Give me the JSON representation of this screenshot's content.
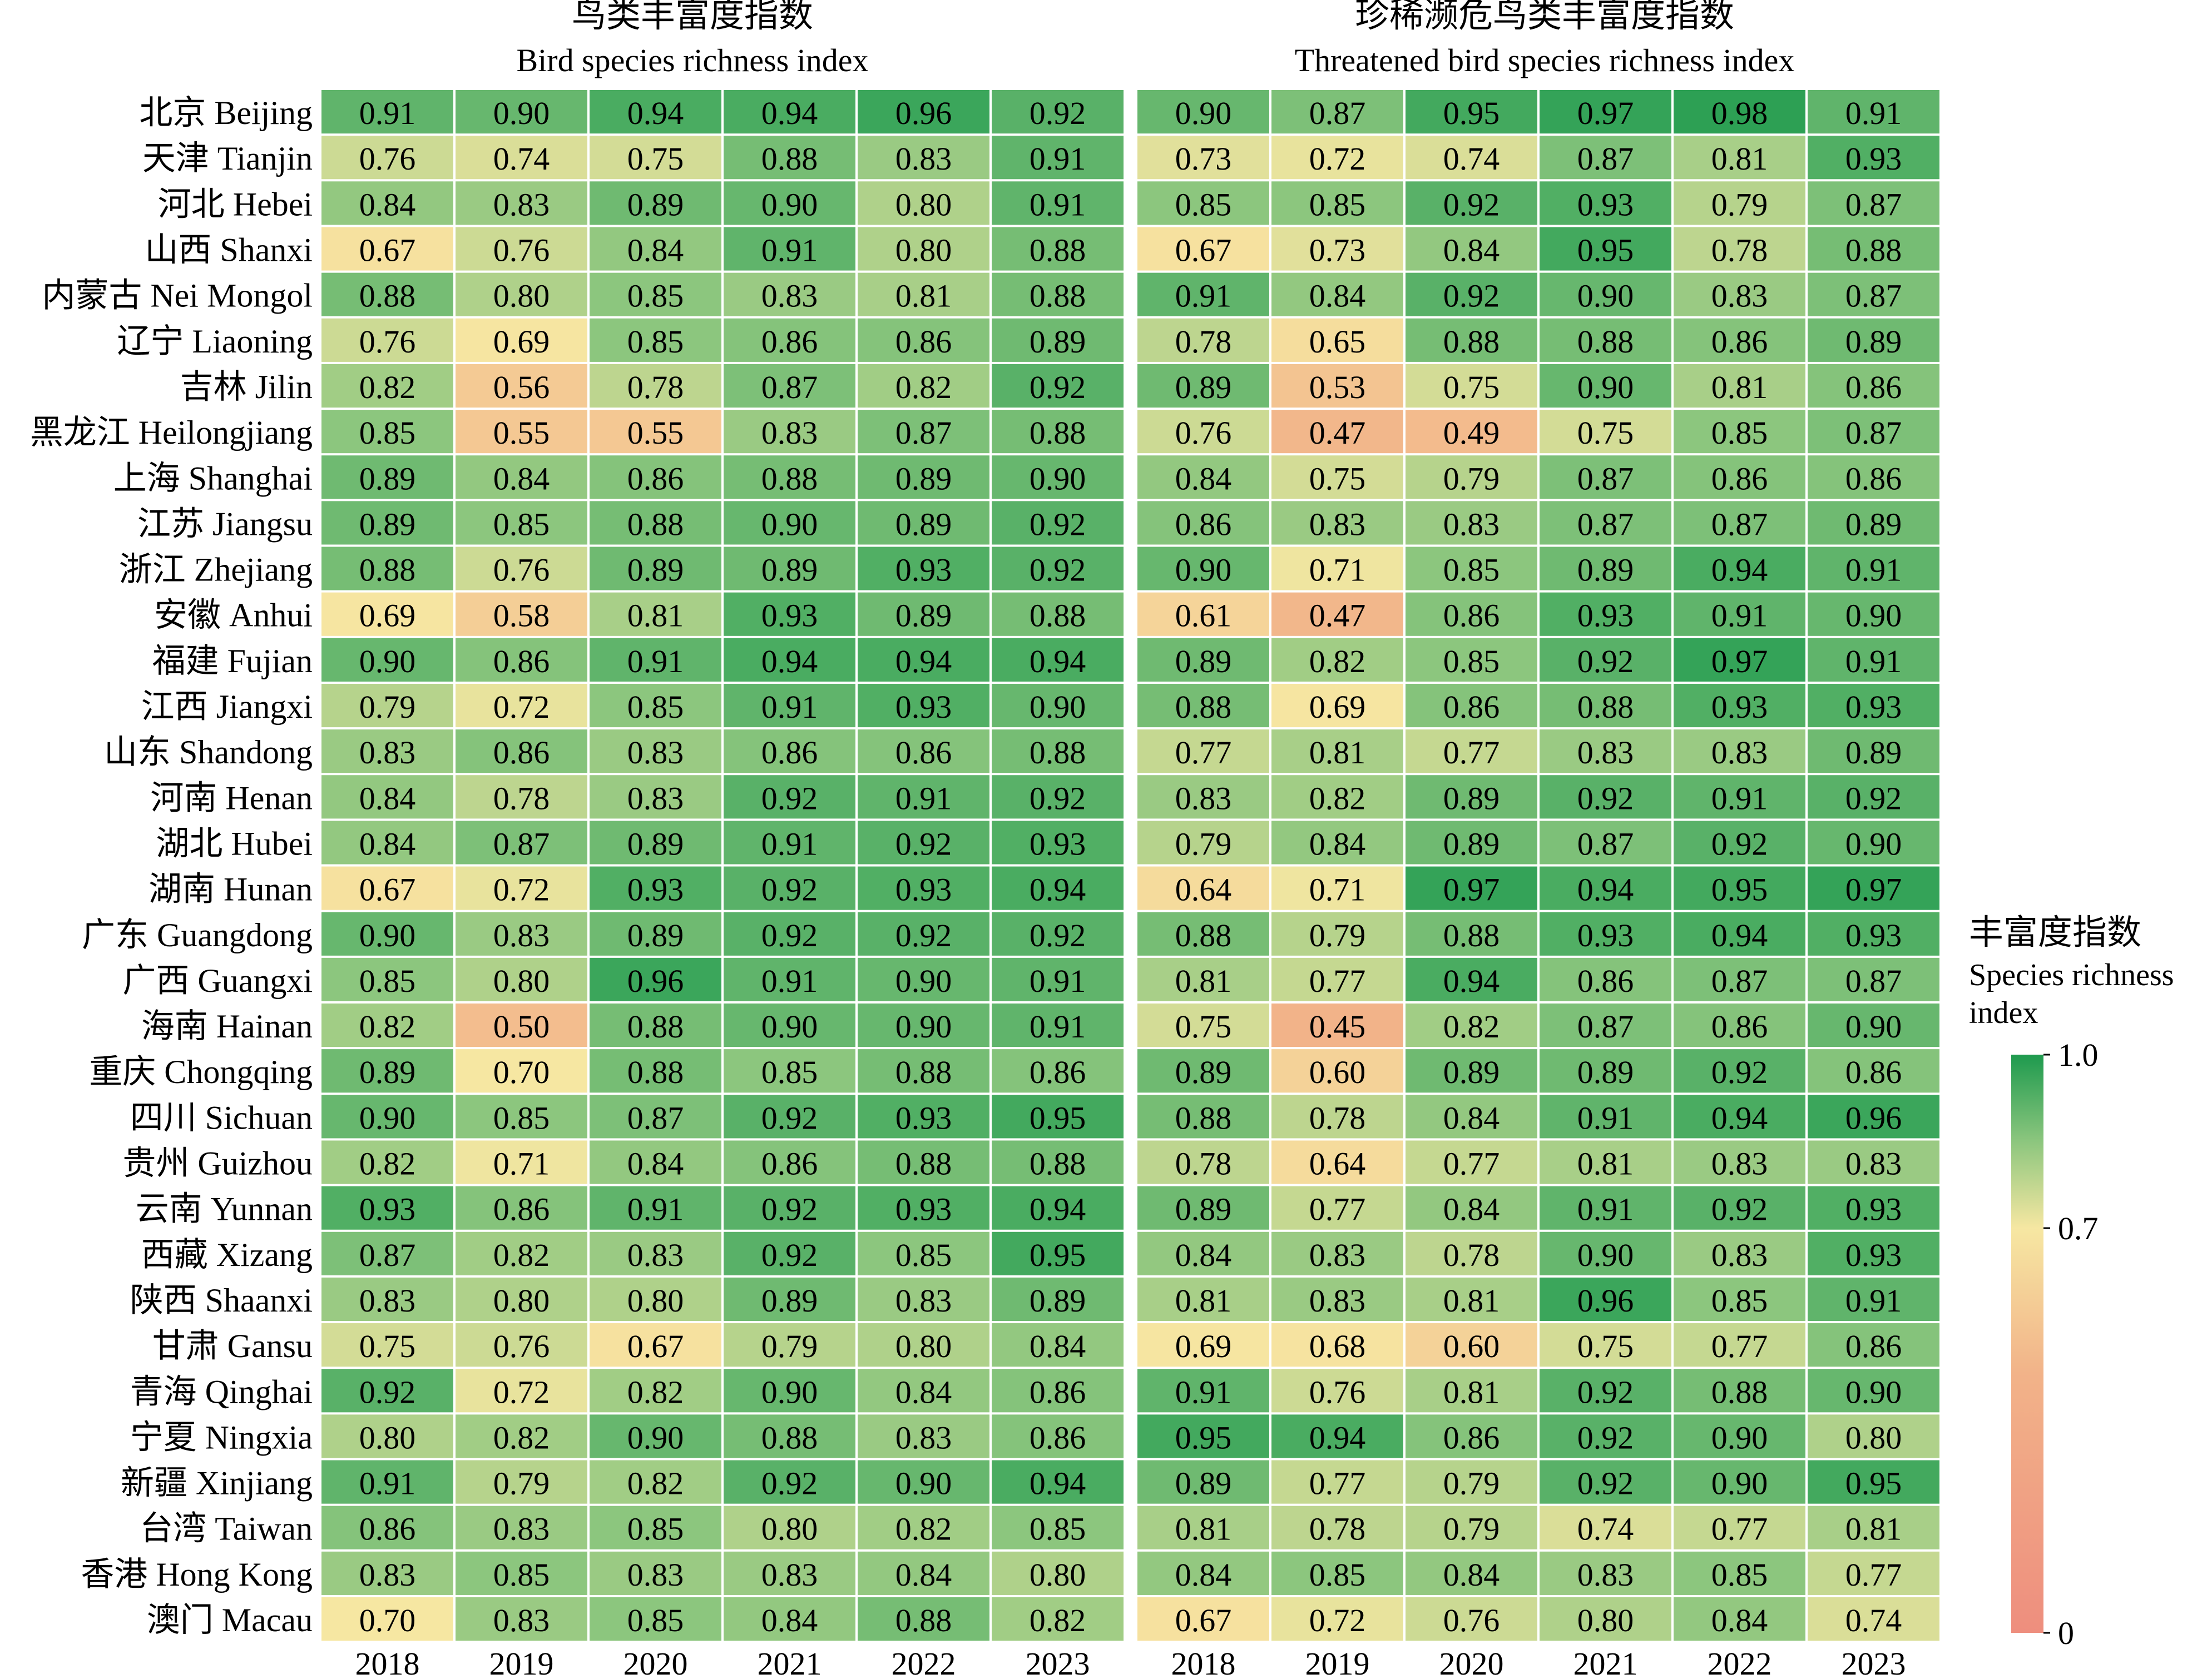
{
  "chart_data": {
    "type": "heatmap",
    "panels": [
      {
        "title_cn": "鸟类丰富度指数",
        "title_en": "Bird species richness index",
        "years": [
          "2018",
          "2019",
          "2020",
          "2021",
          "2022",
          "2023"
        ],
        "values": [
          [
            0.91,
            0.9,
            0.94,
            0.94,
            0.96,
            0.92
          ],
          [
            0.76,
            0.74,
            0.75,
            0.88,
            0.83,
            0.91
          ],
          [
            0.84,
            0.83,
            0.89,
            0.9,
            0.8,
            0.91
          ],
          [
            0.67,
            0.76,
            0.84,
            0.91,
            0.8,
            0.88
          ],
          [
            0.88,
            0.8,
            0.85,
            0.83,
            0.81,
            0.88
          ],
          [
            0.76,
            0.69,
            0.85,
            0.86,
            0.86,
            0.89
          ],
          [
            0.82,
            0.56,
            0.78,
            0.87,
            0.82,
            0.92
          ],
          [
            0.85,
            0.55,
            0.55,
            0.83,
            0.87,
            0.88
          ],
          [
            0.89,
            0.84,
            0.86,
            0.88,
            0.89,
            0.9
          ],
          [
            0.89,
            0.85,
            0.88,
            0.9,
            0.89,
            0.92
          ],
          [
            0.88,
            0.76,
            0.89,
            0.89,
            0.93,
            0.92
          ],
          [
            0.69,
            0.58,
            0.81,
            0.93,
            0.89,
            0.88
          ],
          [
            0.9,
            0.86,
            0.91,
            0.94,
            0.94,
            0.94
          ],
          [
            0.79,
            0.72,
            0.85,
            0.91,
            0.93,
            0.9
          ],
          [
            0.83,
            0.86,
            0.83,
            0.86,
            0.86,
            0.88
          ],
          [
            0.84,
            0.78,
            0.83,
            0.92,
            0.91,
            0.92
          ],
          [
            0.84,
            0.87,
            0.89,
            0.91,
            0.92,
            0.93
          ],
          [
            0.67,
            0.72,
            0.93,
            0.92,
            0.93,
            0.94
          ],
          [
            0.9,
            0.83,
            0.89,
            0.92,
            0.92,
            0.92
          ],
          [
            0.85,
            0.8,
            0.96,
            0.91,
            0.9,
            0.91
          ],
          [
            0.82,
            0.5,
            0.88,
            0.9,
            0.9,
            0.91
          ],
          [
            0.89,
            0.7,
            0.88,
            0.85,
            0.88,
            0.86
          ],
          [
            0.9,
            0.85,
            0.87,
            0.92,
            0.93,
            0.95
          ],
          [
            0.82,
            0.71,
            0.84,
            0.86,
            0.88,
            0.88
          ],
          [
            0.93,
            0.86,
            0.91,
            0.92,
            0.93,
            0.94
          ],
          [
            0.87,
            0.82,
            0.83,
            0.92,
            0.85,
            0.95
          ],
          [
            0.83,
            0.8,
            0.8,
            0.89,
            0.83,
            0.89
          ],
          [
            0.75,
            0.76,
            0.67,
            0.79,
            0.8,
            0.84
          ],
          [
            0.92,
            0.72,
            0.82,
            0.9,
            0.84,
            0.86
          ],
          [
            0.8,
            0.82,
            0.9,
            0.88,
            0.83,
            0.86
          ],
          [
            0.91,
            0.79,
            0.82,
            0.92,
            0.9,
            0.94
          ],
          [
            0.86,
            0.83,
            0.85,
            0.8,
            0.82,
            0.85
          ],
          [
            0.83,
            0.85,
            0.83,
            0.83,
            0.84,
            0.8
          ],
          [
            0.7,
            0.83,
            0.85,
            0.84,
            0.88,
            0.82
          ]
        ]
      },
      {
        "title_cn": "珍稀濒危鸟类丰富度指数",
        "title_en": "Threatened bird species richness index",
        "years": [
          "2018",
          "2019",
          "2020",
          "2021",
          "2022",
          "2023"
        ],
        "values": [
          [
            0.9,
            0.87,
            0.95,
            0.97,
            0.98,
            0.91
          ],
          [
            0.73,
            0.72,
            0.74,
            0.87,
            0.81,
            0.93
          ],
          [
            0.85,
            0.85,
            0.92,
            0.93,
            0.79,
            0.87
          ],
          [
            0.67,
            0.73,
            0.84,
            0.95,
            0.78,
            0.88
          ],
          [
            0.91,
            0.84,
            0.92,
            0.9,
            0.83,
            0.87
          ],
          [
            0.78,
            0.65,
            0.88,
            0.88,
            0.86,
            0.89
          ],
          [
            0.89,
            0.53,
            0.75,
            0.9,
            0.81,
            0.86
          ],
          [
            0.76,
            0.47,
            0.49,
            0.75,
            0.85,
            0.87
          ],
          [
            0.84,
            0.75,
            0.79,
            0.87,
            0.86,
            0.86
          ],
          [
            0.86,
            0.83,
            0.83,
            0.87,
            0.87,
            0.89
          ],
          [
            0.9,
            0.71,
            0.85,
            0.89,
            0.94,
            0.91
          ],
          [
            0.61,
            0.47,
            0.86,
            0.93,
            0.91,
            0.9
          ],
          [
            0.89,
            0.82,
            0.85,
            0.92,
            0.97,
            0.91
          ],
          [
            0.88,
            0.69,
            0.86,
            0.88,
            0.93,
            0.93
          ],
          [
            0.77,
            0.81,
            0.77,
            0.83,
            0.83,
            0.89
          ],
          [
            0.83,
            0.82,
            0.89,
            0.92,
            0.91,
            0.92
          ],
          [
            0.79,
            0.84,
            0.89,
            0.87,
            0.92,
            0.9
          ],
          [
            0.64,
            0.71,
            0.97,
            0.94,
            0.95,
            0.97
          ],
          [
            0.88,
            0.79,
            0.88,
            0.93,
            0.94,
            0.93
          ],
          [
            0.81,
            0.77,
            0.94,
            0.86,
            0.87,
            0.87
          ],
          [
            0.75,
            0.45,
            0.82,
            0.87,
            0.86,
            0.9
          ],
          [
            0.89,
            0.6,
            0.89,
            0.89,
            0.92,
            0.86
          ],
          [
            0.88,
            0.78,
            0.84,
            0.91,
            0.94,
            0.96
          ],
          [
            0.78,
            0.64,
            0.77,
            0.81,
            0.83,
            0.83
          ],
          [
            0.89,
            0.77,
            0.84,
            0.91,
            0.92,
            0.93
          ],
          [
            0.84,
            0.83,
            0.78,
            0.9,
            0.83,
            0.93
          ],
          [
            0.81,
            0.83,
            0.81,
            0.96,
            0.85,
            0.91
          ],
          [
            0.69,
            0.68,
            0.6,
            0.75,
            0.77,
            0.86
          ],
          [
            0.91,
            0.76,
            0.81,
            0.92,
            0.88,
            0.9
          ],
          [
            0.95,
            0.94,
            0.86,
            0.92,
            0.9,
            0.8
          ],
          [
            0.89,
            0.77,
            0.79,
            0.92,
            0.9,
            0.95
          ],
          [
            0.81,
            0.78,
            0.79,
            0.74,
            0.77,
            0.81
          ],
          [
            0.84,
            0.85,
            0.84,
            0.83,
            0.85,
            0.77
          ],
          [
            0.67,
            0.72,
            0.76,
            0.8,
            0.84,
            0.74
          ]
        ]
      }
    ],
    "rows": [
      "北京 Beijing",
      "天津 Tianjin",
      "河北 Hebei",
      "山西 Shanxi",
      "内蒙古 Nei Mongol",
      "辽宁 Liaoning",
      "吉林 Jilin",
      "黑龙江 Heilongjiang",
      "上海 Shanghai",
      "江苏 Jiangsu",
      "浙江 Zhejiang",
      "安徽 Anhui",
      "福建 Fujian",
      "江西 Jiangxi",
      "山东 Shandong",
      "河南 Henan",
      "湖北 Hubei",
      "湖南 Hunan",
      "广东 Guangdong",
      "广西 Guangxi",
      "海南 Hainan",
      "重庆 Chongqing",
      "四川 Sichuan",
      "贵州 Guizhou",
      "云南 Yunnan",
      "西藏 Xizang",
      "陕西 Shaanxi",
      "甘肃 Gansu",
      "青海 Qinghai",
      "宁夏 Ningxia",
      "新疆 Xinjiang",
      "台湾 Taiwan",
      "香港 Hong Kong",
      "澳门 Macau"
    ],
    "colorbar": {
      "title_cn": "丰富度指数",
      "title_en_line1": "Species richness",
      "title_en_line2": "index",
      "ticks": [
        "1.0",
        "0.7",
        "0"
      ],
      "tick_values": [
        1.0,
        0.7,
        0
      ],
      "range": [
        0,
        1
      ],
      "stops": [
        {
          "value": 0.0,
          "color": "#ee8e7e"
        },
        {
          "value": 0.45,
          "color": "#f2b389"
        },
        {
          "value": 0.7,
          "color": "#f6e7a2"
        },
        {
          "value": 0.85,
          "color": "#8cc67e"
        },
        {
          "value": 1.0,
          "color": "#1e9a4e"
        }
      ]
    }
  }
}
